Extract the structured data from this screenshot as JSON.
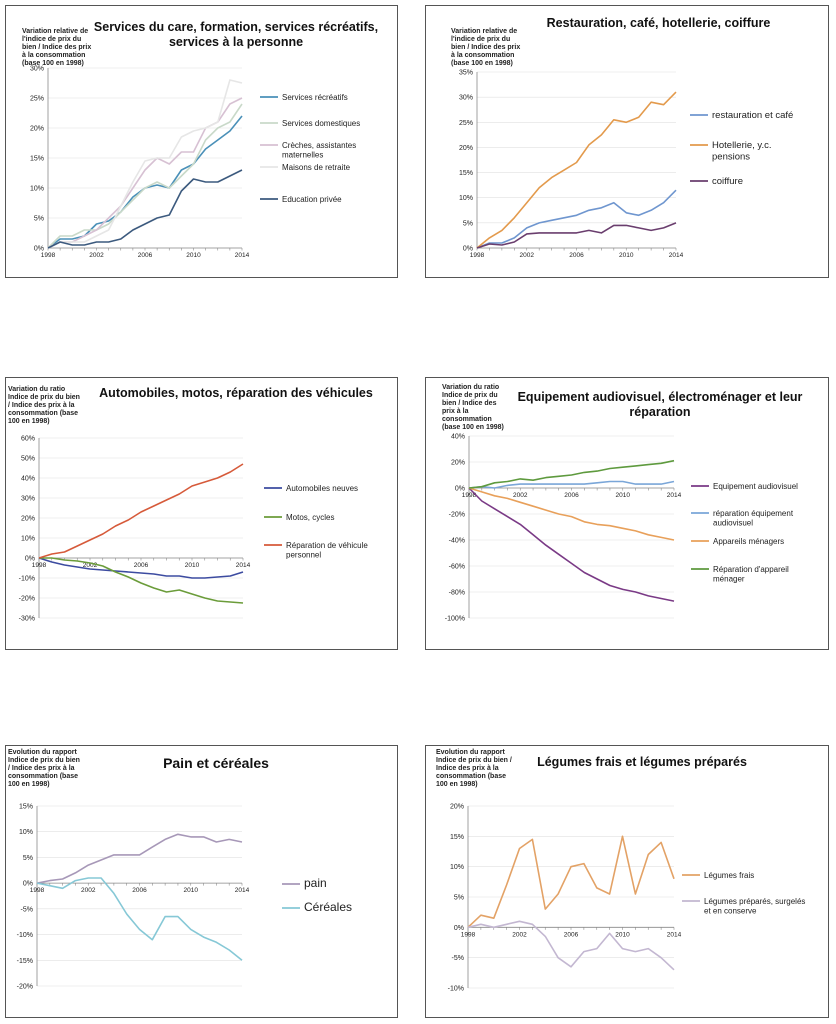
{
  "chart_data": [
    {
      "type": "line",
      "title": "Services du care, formation, services récréatifs, services à la personne",
      "ylabel": "Variation relative de l'indice de prix du bien / Indice des prix à la consommation (base 100 en 1998)",
      "x": [
        1998,
        1999,
        2000,
        2001,
        2002,
        2003,
        2004,
        2005,
        2006,
        2007,
        2008,
        2009,
        2010,
        2011,
        2012,
        2013,
        2014
      ],
      "x_ticks": [
        "1998",
        "2002",
        "2006",
        "2010",
        "2014"
      ],
      "y_ticks": [
        "0%",
        "5%",
        "10%",
        "15%",
        "20%",
        "25%",
        "30%"
      ],
      "ylim": [
        0,
        30
      ],
      "series": [
        {
          "name": "Services récréatifs",
          "color": "#4a90b8",
          "values": [
            0,
            1.5,
            1.5,
            2,
            4,
            4.5,
            6,
            8.5,
            10,
            10.5,
            10,
            13,
            14,
            16.5,
            18,
            19.5,
            22
          ]
        },
        {
          "name": "Services domestiques",
          "color": "#c9d9c9",
          "values": [
            0,
            2,
            2,
            3,
            3,
            4,
            6,
            8,
            10,
            11,
            10,
            12,
            14,
            18,
            20,
            21,
            24
          ]
        },
        {
          "name": "Crèches, assistantes maternelles",
          "color": "#d7c1d3",
          "values": [
            0,
            1,
            1,
            2,
            3,
            5,
            7,
            10,
            13,
            15,
            14,
            16,
            16,
            20,
            21,
            24,
            25
          ]
        },
        {
          "name": "Maisons de retraite",
          "color": "#e6e6e6",
          "values": [
            0,
            1,
            1,
            1,
            2,
            3,
            7,
            11,
            14.5,
            15,
            15,
            18.5,
            19.5,
            20,
            21,
            28,
            27.5
          ]
        },
        {
          "name": "Education privée",
          "color": "#3c5a7e",
          "values": [
            0,
            1,
            0.5,
            0.5,
            1,
            1,
            1.5,
            3,
            4,
            5,
            5.5,
            9.5,
            11.5,
            11,
            11,
            12,
            13
          ]
        }
      ]
    },
    {
      "type": "line",
      "title": "Restauration, café, hotellerie, coiffure",
      "ylabel": "Variation relative de l'indice de prix du bien / Indice des prix à la consommation (base 100 en 1998)",
      "x": [
        1998,
        1999,
        2000,
        2001,
        2002,
        2003,
        2004,
        2005,
        2006,
        2007,
        2008,
        2009,
        2010,
        2011,
        2012,
        2013,
        2014
      ],
      "x_ticks": [
        "1998",
        "2002",
        "2006",
        "2010",
        "2014"
      ],
      "y_ticks": [
        "0%",
        "5%",
        "10%",
        "15%",
        "20%",
        "25%",
        "30%",
        "35%"
      ],
      "ylim": [
        0,
        35
      ],
      "series": [
        {
          "name": "restauration et café",
          "color": "#6f96cf",
          "values": [
            0,
            1,
            1,
            2,
            4,
            5,
            5.5,
            6,
            6.5,
            7.5,
            8,
            9,
            7,
            6.5,
            7.5,
            9,
            11.5
          ]
        },
        {
          "name": "Hotellerie, y.c. pensions",
          "color": "#e39a4c",
          "values": [
            0,
            2,
            3.5,
            6,
            9,
            12,
            14,
            15.5,
            17,
            20.5,
            22.5,
            25.5,
            25,
            26,
            29,
            28.5,
            31
          ]
        },
        {
          "name": "coiffure",
          "color": "#6a3e6e",
          "values": [
            0,
            0.8,
            0.6,
            1.2,
            2.8,
            3,
            3,
            3,
            3,
            3.5,
            3,
            4.5,
            4.5,
            4,
            3.5,
            4,
            5
          ]
        }
      ]
    },
    {
      "type": "line",
      "title": "Automobiles, motos, réparation des véhicules",
      "ylabel": "Variation du ratio Indice de prix du bien / Indice des prix à la consommation (base 100 en 1998)",
      "x": [
        1998,
        1999,
        2000,
        2001,
        2002,
        2003,
        2004,
        2005,
        2006,
        2007,
        2008,
        2009,
        2010,
        2011,
        2012,
        2013,
        2014
      ],
      "x_ticks": [
        "1998",
        "2002",
        "2006",
        "2010",
        "2014"
      ],
      "y_ticks": [
        "-30%",
        "-20%",
        "-10%",
        "0%",
        "10%",
        "20%",
        "30%",
        "40%",
        "50%",
        "60%"
      ],
      "ylim": [
        -30,
        60
      ],
      "series": [
        {
          "name": "Automobiles neuves",
          "color": "#3c4ba0",
          "values": [
            0,
            -2,
            -3.5,
            -4.5,
            -5.5,
            -6,
            -6.5,
            -7,
            -7.5,
            -8,
            -9,
            -9,
            -10,
            -10,
            -9.5,
            -9,
            -7
          ]
        },
        {
          "name": "Motos, cycles",
          "color": "#6b9c3a",
          "values": [
            0,
            0,
            -1,
            -1.5,
            -2.5,
            -4,
            -7,
            -9.5,
            -12.5,
            -15,
            -17,
            -16,
            -18,
            -20,
            -21.5,
            -22,
            -22.5
          ]
        },
        {
          "name": "Réparation de véhicule personnel",
          "color": "#d65a3a",
          "values": [
            0,
            2,
            3,
            6,
            9,
            12,
            16,
            19,
            23,
            26,
            29,
            32,
            36,
            38,
            40,
            43,
            47
          ]
        }
      ]
    },
    {
      "type": "line",
      "title": "Equipement audiovisuel, électroménager et leur réparation",
      "ylabel": "Variation du ratio Indice de prix du bien / Indice des prix à la consommation (base 100 en 1998)",
      "x": [
        1998,
        1999,
        2000,
        2001,
        2002,
        2003,
        2004,
        2005,
        2006,
        2007,
        2008,
        2009,
        2010,
        2011,
        2012,
        2013,
        2014
      ],
      "x_ticks": [
        "1998",
        "2002",
        "2006",
        "2010",
        "2014"
      ],
      "y_ticks": [
        "-100%",
        "-80%",
        "-60%",
        "-40%",
        "-20%",
        "0%",
        "20%",
        "40%"
      ],
      "ylim": [
        -100,
        40
      ],
      "series": [
        {
          "name": "Equipement audiovisuel",
          "color": "#7a3a86",
          "values": [
            0,
            -10,
            -16,
            -22,
            -28,
            -36,
            -44,
            -51,
            -58,
            -65,
            -70,
            -75,
            -78,
            -80,
            -83,
            -85,
            -87
          ]
        },
        {
          "name": "réparation équipement audiovisuel",
          "color": "#7aa6d8",
          "values": [
            0,
            1,
            0,
            2,
            3,
            3,
            3,
            3,
            3,
            3,
            4,
            5,
            5,
            3,
            3,
            3,
            5
          ]
        },
        {
          "name": "Appareils ménagers",
          "color": "#e8a05a",
          "values": [
            0,
            -3,
            -6,
            -8,
            -11,
            -14,
            -17,
            -20,
            -22,
            -26,
            -28,
            -29,
            -31,
            -33,
            -36,
            -38,
            -40
          ]
        },
        {
          "name": "Réparation d'appareil ménager",
          "color": "#5e9a3e",
          "values": [
            0,
            1,
            4,
            5,
            7,
            6,
            8,
            9,
            10,
            12,
            13,
            15,
            16,
            17,
            18,
            19,
            21
          ]
        }
      ]
    },
    {
      "type": "line",
      "title": "Pain et céréales",
      "ylabel": "Evolution du rapport Indice de prix du bien / Indice des prix à la consommation (base 100 en 1998)",
      "x": [
        1998,
        1999,
        2000,
        2001,
        2002,
        2003,
        2004,
        2005,
        2006,
        2007,
        2008,
        2009,
        2010,
        2011,
        2012,
        2013,
        2014
      ],
      "x_ticks": [
        "1998",
        "2002",
        "2006",
        "2010",
        "2014"
      ],
      "y_ticks": [
        "-20%",
        "-15%",
        "-10%",
        "-5%",
        "0%",
        "5%",
        "10%",
        "15%"
      ],
      "ylim": [
        -20,
        15
      ],
      "series": [
        {
          "name": "pain",
          "color": "#a798b8",
          "values": [
            0,
            0.5,
            0.8,
            2,
            3.5,
            4.5,
            5.5,
            5.5,
            5.5,
            7,
            8.5,
            9.5,
            9,
            9,
            8,
            8.5,
            8
          ]
        },
        {
          "name": "Céréales",
          "color": "#86c8d6",
          "values": [
            0,
            -0.5,
            -1,
            0.5,
            1,
            1,
            -2,
            -6,
            -9,
            -11,
            -6.5,
            -6.5,
            -9,
            -10.5,
            -11.5,
            -13,
            -15
          ]
        }
      ]
    },
    {
      "type": "line",
      "title": "Légumes frais et légumes préparés",
      "ylabel": "Evolution du rapport Indice de prix du bien / Indice des prix à la consommation (base 100 en 1998)",
      "x": [
        1998,
        1999,
        2000,
        2001,
        2002,
        2003,
        2004,
        2005,
        2006,
        2007,
        2008,
        2009,
        2010,
        2011,
        2012,
        2013,
        2014
      ],
      "x_ticks": [
        "1998",
        "2002",
        "2006",
        "2010",
        "2014"
      ],
      "y_ticks": [
        "-10%",
        "-5%",
        "0%",
        "5%",
        "10%",
        "15%",
        "20%"
      ],
      "ylim": [
        -10,
        20
      ],
      "series": [
        {
          "name": "Légumes frais",
          "color": "#e3a266",
          "values": [
            0,
            2,
            1.5,
            7,
            13,
            14.5,
            3,
            5.5,
            10,
            10.5,
            6.5,
            5.5,
            15,
            5.5,
            12,
            14,
            8
          ]
        },
        {
          "name": "Légumes préparés, surgelés et en conserve",
          "color": "#c3b7d1",
          "values": [
            0,
            0.5,
            0,
            0.5,
            1,
            0.5,
            -1.5,
            -5,
            -6.5,
            -4,
            -3.5,
            -1,
            -3.5,
            -4,
            -3.5,
            -5,
            -7
          ]
        }
      ]
    }
  ]
}
